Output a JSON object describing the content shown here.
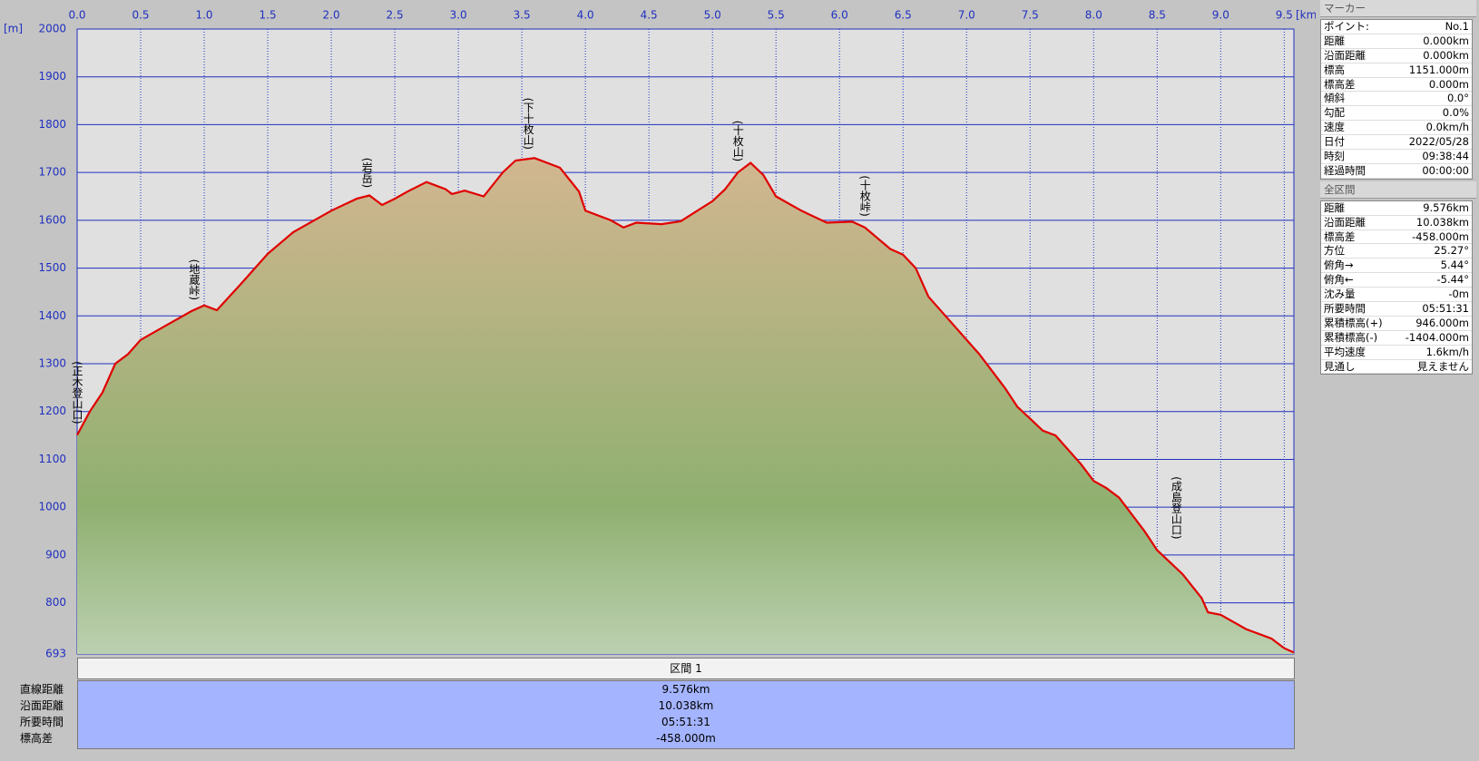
{
  "chart_data": {
    "type": "area",
    "x_label": "[km]",
    "y_label": "[m]",
    "color": "#e00000",
    "xlim": [
      0,
      9.576
    ],
    "ylim": [
      693,
      2000
    ],
    "xticks": [
      {
        "value": 0,
        "label": "0.0"
      },
      0.5,
      {
        "value": 1,
        "label": "1.0"
      },
      1.5,
      {
        "value": 2,
        "label": "2.0"
      },
      2.5,
      {
        "value": 3,
        "label": "3.0"
      },
      3.5,
      {
        "value": 4,
        "label": "4.0"
      },
      4.5,
      {
        "value": 5,
        "label": "5.0"
      },
      5.5,
      {
        "value": 6,
        "label": "6.0"
      },
      6.5,
      {
        "value": 7,
        "label": "7.0"
      },
      7.5,
      {
        "value": 8,
        "label": "8.0"
      },
      8.5,
      {
        "value": 9,
        "label": "9.0"
      },
      9.5
    ],
    "yticks": [
      693,
      800,
      900,
      1000,
      1100,
      1200,
      1300,
      1400,
      1500,
      1600,
      1700,
      1800,
      1900,
      2000
    ],
    "grid": true,
    "x": [
      0,
      0.1,
      0.2,
      0.3,
      0.4,
      0.5,
      0.7,
      0.9,
      1.0,
      1.1,
      1.3,
      1.5,
      1.7,
      2.0,
      2.2,
      2.3,
      2.4,
      2.5,
      2.6,
      2.75,
      2.9,
      2.95,
      3.05,
      3.2,
      3.35,
      3.45,
      3.6,
      3.8,
      3.95,
      4.0,
      4.2,
      4.3,
      4.4,
      4.6,
      4.75,
      5.0,
      5.1,
      5.2,
      5.3,
      5.4,
      5.5,
      5.7,
      5.9,
      6.1,
      6.2,
      6.4,
      6.5,
      6.6,
      6.7,
      6.9,
      7.1,
      7.3,
      7.4,
      7.5,
      7.6,
      7.7,
      7.9,
      8.0,
      8.1,
      8.2,
      8.4,
      8.5,
      8.7,
      8.85,
      8.9,
      9.0,
      9.2,
      9.4,
      9.5,
      9.576
    ],
    "series": [
      {
        "color": "#e00000",
        "values": [
          1151,
          1200,
          1240,
          1300,
          1320,
          1350,
          1380,
          1410,
          1422,
          1412,
          1470,
          1530,
          1575,
          1620,
          1645,
          1652,
          1632,
          1645,
          1660,
          1680,
          1665,
          1655,
          1662,
          1650,
          1700,
          1725,
          1730,
          1710,
          1660,
          1620,
          1600,
          1585,
          1595,
          1592,
          1598,
          1640,
          1665,
          1700,
          1720,
          1695,
          1650,
          1620,
          1595,
          1597,
          1585,
          1540,
          1528,
          1500,
          1440,
          1380,
          1320,
          1250,
          1210,
          1185,
          1160,
          1150,
          1090,
          1055,
          1040,
          1020,
          950,
          910,
          860,
          810,
          780,
          775,
          745,
          725,
          705,
          696
        ]
      }
    ],
    "annotations": [
      {
        "x": 0,
        "label": "(正木登山口)"
      },
      {
        "x": 0.92,
        "label": "(地蔵峠)"
      },
      {
        "x": 2.28,
        "label": "(岩岳)"
      },
      {
        "x": 3.55,
        "label": "(下十枚山)"
      },
      {
        "x": 5.2,
        "label": "(十枚山)"
      },
      {
        "x": 6.2,
        "label": "(十枚峠)"
      },
      {
        "x": 8.65,
        "label": "(成島登山口)"
      }
    ]
  },
  "marker_panel": {
    "title": "マーカー",
    "rows": [
      [
        "ポイント:",
        "No.1"
      ],
      [
        "距離",
        "0.000km"
      ],
      [
        "沿面距離",
        "0.000km"
      ],
      [
        "標高",
        "1151.000m"
      ],
      [
        "標高差",
        "0.000m"
      ],
      [
        "傾斜",
        "0.0°"
      ],
      [
        "勾配",
        "0.0%"
      ],
      [
        "速度",
        "0.0km/h"
      ],
      [
        "日付",
        "2022/05/28"
      ],
      [
        "時刻",
        "09:38:44"
      ],
      [
        "経過時間",
        "00:00:00"
      ]
    ]
  },
  "total_panel": {
    "title": "全区間",
    "rows": [
      [
        "距離",
        "9.576km"
      ],
      [
        "沿面距離",
        "10.038km"
      ],
      [
        "標高差",
        "-458.000m"
      ],
      [
        "方位",
        "25.27°"
      ],
      [
        "俯角→",
        "5.44°"
      ],
      [
        "俯角←",
        "-5.44°"
      ],
      [
        "沈み量",
        "-0m"
      ],
      [
        "所要時間",
        "05:51:31"
      ],
      [
        "累積標高(+)",
        "946.000m"
      ],
      [
        "累積標高(-)",
        "-1404.000m"
      ],
      [
        "平均速度",
        "1.6km/h"
      ],
      [
        "見通し",
        "見えません"
      ]
    ]
  },
  "section_table": {
    "header": "区間 1",
    "rows": [
      [
        "直線距離",
        "9.576km"
      ],
      [
        "沿面距離",
        "10.038km"
      ],
      [
        "所要時間",
        "05:51:31"
      ],
      [
        "標高差",
        "-458.000m"
      ]
    ]
  }
}
